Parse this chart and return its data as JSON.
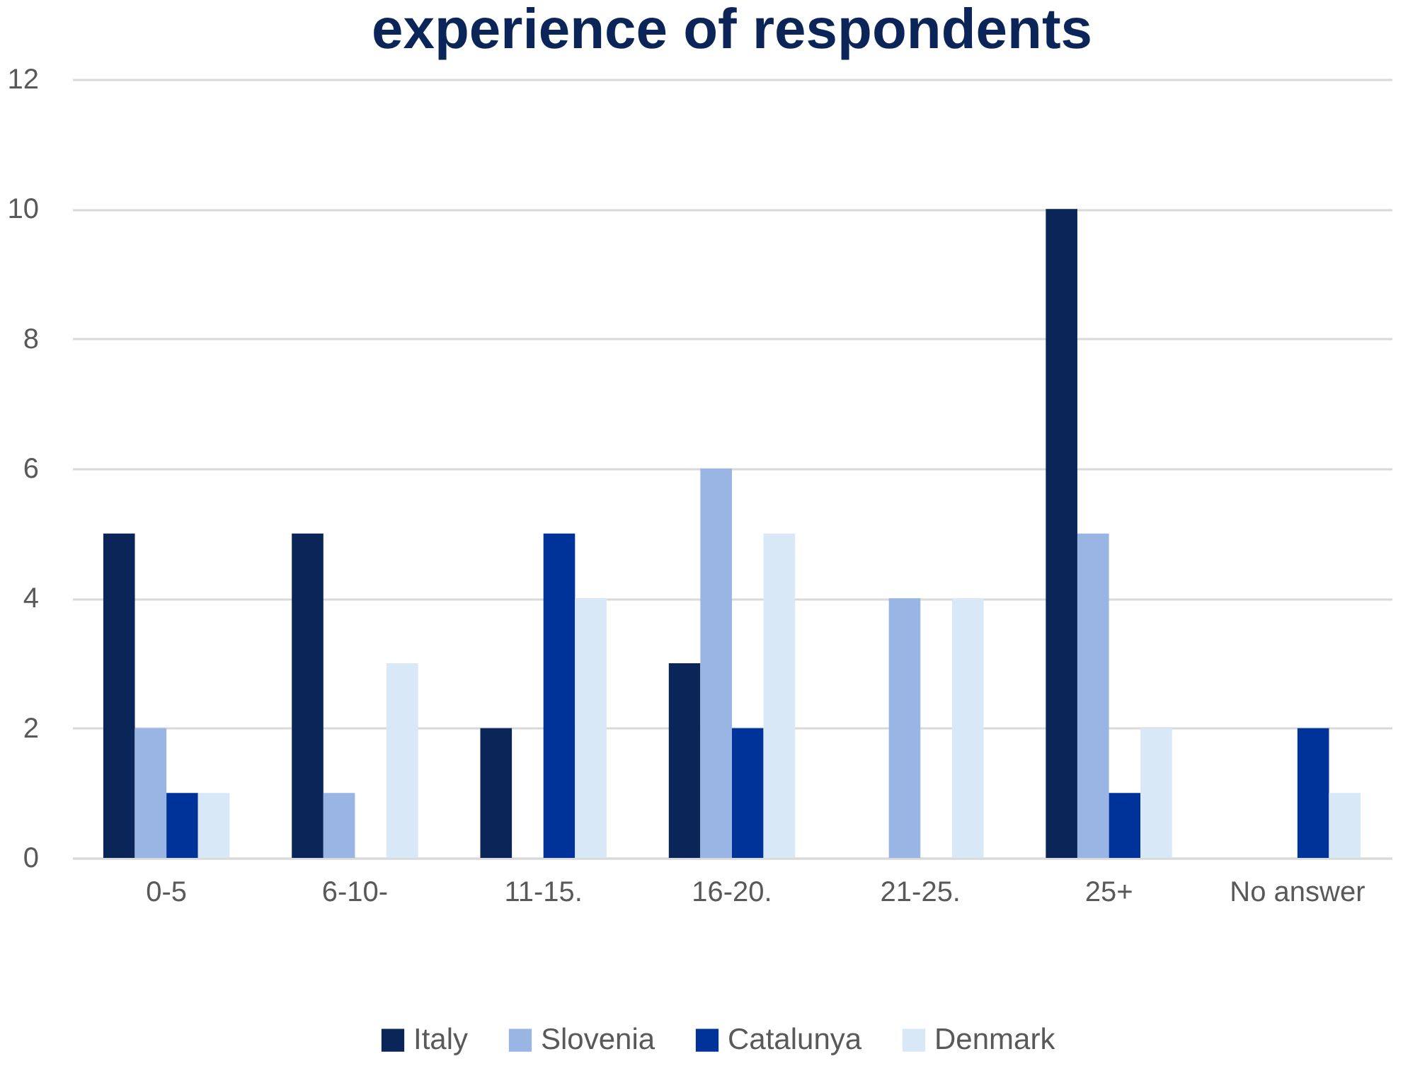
{
  "chart_data": {
    "type": "bar",
    "title": "experience of respondents",
    "categories": [
      "0-5",
      "6-10-",
      "11-15.",
      "16-20.",
      "21-25.",
      "25+",
      "No answer"
    ],
    "series": [
      {
        "name": "Italy",
        "color": "#0a2558",
        "values": [
          5,
          5,
          2,
          3,
          null,
          10,
          null
        ]
      },
      {
        "name": "Slovenia",
        "color": "#98b5e3",
        "values": [
          2,
          1,
          null,
          6,
          4,
          5,
          null
        ]
      },
      {
        "name": "Catalunya",
        "color": "#00339a",
        "values": [
          1,
          null,
          5,
          2,
          null,
          1,
          2
        ]
      },
      {
        "name": "Denmark",
        "color": "#d9e8f7",
        "values": [
          1,
          3,
          4,
          5,
          4,
          2,
          1
        ]
      }
    ],
    "ylim": [
      0,
      12
    ],
    "yticks": [
      0,
      2,
      4,
      6,
      8,
      10,
      12
    ],
    "grid": "y",
    "legend": "bottom"
  }
}
